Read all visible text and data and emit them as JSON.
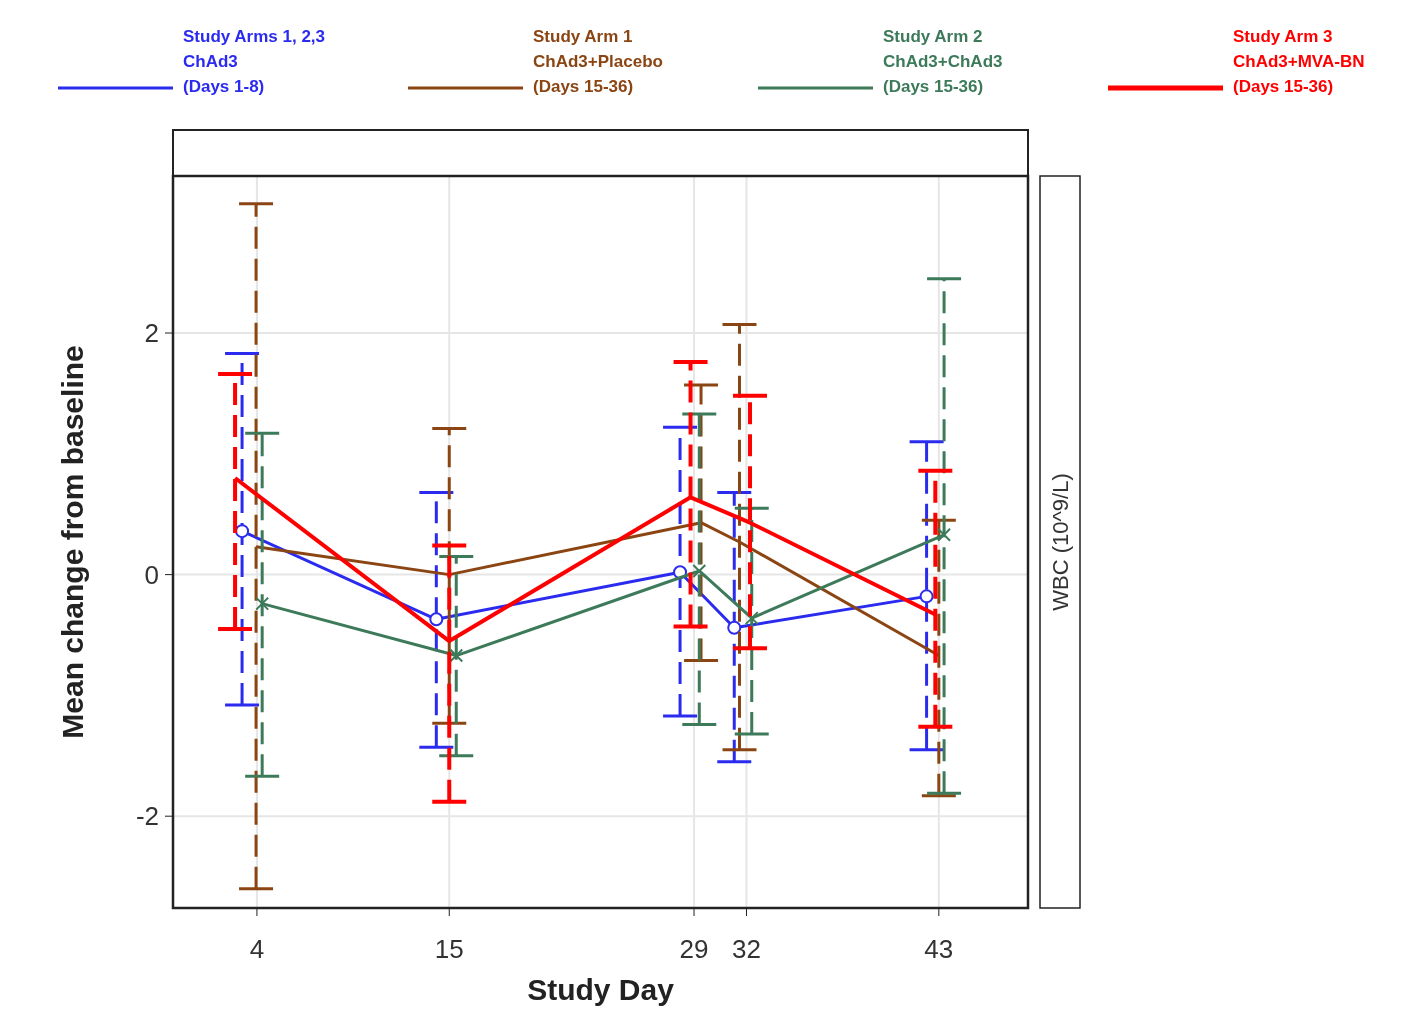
{
  "chart_data": {
    "type": "line",
    "xlabel": "Study Day",
    "ylabel": "Mean change from baseline",
    "annotations": [
      "WBC (10^9/L)"
    ],
    "xlim": [
      -0.8,
      48.1
    ],
    "xticks": [
      4,
      15,
      29,
      32,
      43
    ],
    "ylim": [
      -2.76,
      3.3
    ],
    "yticks": [
      -2,
      0,
      2
    ],
    "grid": true,
    "legend": "top",
    "line_style": "solid",
    "series": [
      {
        "name": "Study Arms 1, 2,3\nChAd3\n(Days 1-8)",
        "color": "#2b2bf0",
        "marker": "circle",
        "x": [
          3.15,
          14.26,
          28.2,
          31.3,
          42.3
        ],
        "values": [
          0.36,
          -0.37,
          0.02,
          -0.44,
          -0.18
        ],
        "errors": [
          [
            -1.08,
            1.83
          ],
          [
            -1.43,
            0.68
          ],
          [
            -1.17,
            1.22
          ],
          [
            -1.55,
            0.68
          ],
          [
            -1.45,
            1.1
          ]
        ]
      },
      {
        "name": "Study Arm 1\nChAd3+Placebo\n(Days 15-36)",
        "color": "#8b4513",
        "marker": "none",
        "x": [
          3.95,
          15,
          29.4,
          31.6,
          43
        ],
        "values": [
          0.23,
          0.0,
          0.43,
          0.27,
          -0.67
        ],
        "errors": [
          [
            -2.6,
            3.07
          ],
          [
            -1.23,
            1.21
          ],
          [
            -0.71,
            1.57
          ],
          [
            -1.45,
            2.07
          ],
          [
            -1.83,
            0.45
          ]
        ]
      },
      {
        "name": "Study Arm 2\nChAd3+ChAd3\n(Days 15-36)",
        "color": "#3d7a5a",
        "marker": "cross",
        "x": [
          4.3,
          15.4,
          29.3,
          32.3,
          43.3
        ],
        "values": [
          -0.24,
          -0.67,
          0.03,
          -0.36,
          0.33
        ],
        "errors": [
          [
            -1.67,
            1.17
          ],
          [
            -1.5,
            0.15
          ],
          [
            -1.24,
            1.33
          ],
          [
            -1.32,
            0.55
          ],
          [
            -1.81,
            2.45
          ]
        ]
      },
      {
        "name": "Study Arm 3\nChAd3+MVA-BN\n(Days 15-36)",
        "color": "#ff0000",
        "marker": "none",
        "x": [
          2.75,
          15,
          28.8,
          32.2,
          42.8
        ],
        "values": [
          0.8,
          -0.55,
          0.64,
          0.43,
          -0.33
        ],
        "errors": [
          [
            -0.45,
            1.66
          ],
          [
            -1.88,
            0.24
          ],
          [
            -0.43,
            1.76
          ],
          [
            -0.61,
            1.48
          ],
          [
            -1.26,
            0.86
          ]
        ]
      }
    ]
  }
}
